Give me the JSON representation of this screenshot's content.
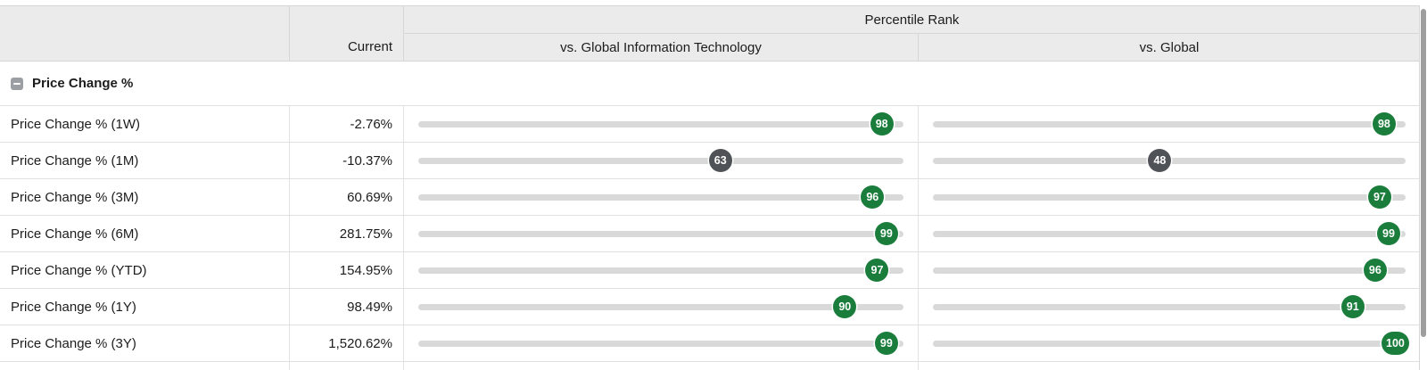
{
  "header": {
    "percentile_rank_label": "Percentile Rank",
    "current_label": "Current",
    "vs_sector_label": "vs. Global Information Technology",
    "vs_global_label": "vs. Global"
  },
  "section": {
    "title": "Price Change %",
    "collapse_icon": "minus"
  },
  "rows": [
    {
      "label": "Price Change % (1W)",
      "current": "-2.76%",
      "vs_sector": {
        "value": "98",
        "color": "green"
      },
      "vs_global": {
        "value": "98",
        "color": "green"
      }
    },
    {
      "label": "Price Change % (1M)",
      "current": "-10.37%",
      "vs_sector": {
        "value": "63",
        "color": "gray"
      },
      "vs_global": {
        "value": "48",
        "color": "gray"
      }
    },
    {
      "label": "Price Change % (3M)",
      "current": "60.69%",
      "vs_sector": {
        "value": "96",
        "color": "green"
      },
      "vs_global": {
        "value": "97",
        "color": "green"
      }
    },
    {
      "label": "Price Change % (6M)",
      "current": "281.75%",
      "vs_sector": {
        "value": "99",
        "color": "green"
      },
      "vs_global": {
        "value": "99",
        "color": "green"
      }
    },
    {
      "label": "Price Change % (YTD)",
      "current": "154.95%",
      "vs_sector": {
        "value": "97",
        "color": "green"
      },
      "vs_global": {
        "value": "96",
        "color": "green"
      }
    },
    {
      "label": "Price Change % (1Y)",
      "current": "98.49%",
      "vs_sector": {
        "value": "90",
        "color": "green"
      },
      "vs_global": {
        "value": "91",
        "color": "green"
      }
    },
    {
      "label": "Price Change % (3Y)",
      "current": "1,520.62%",
      "vs_sector": {
        "value": "99",
        "color": "green"
      },
      "vs_global": {
        "value": "100",
        "color": "green"
      }
    }
  ],
  "colors": {
    "badge_green": "#1a7d3c",
    "badge_gray": "#4f5358",
    "track": "#d9d9d9",
    "header_bg": "#ebebeb"
  }
}
